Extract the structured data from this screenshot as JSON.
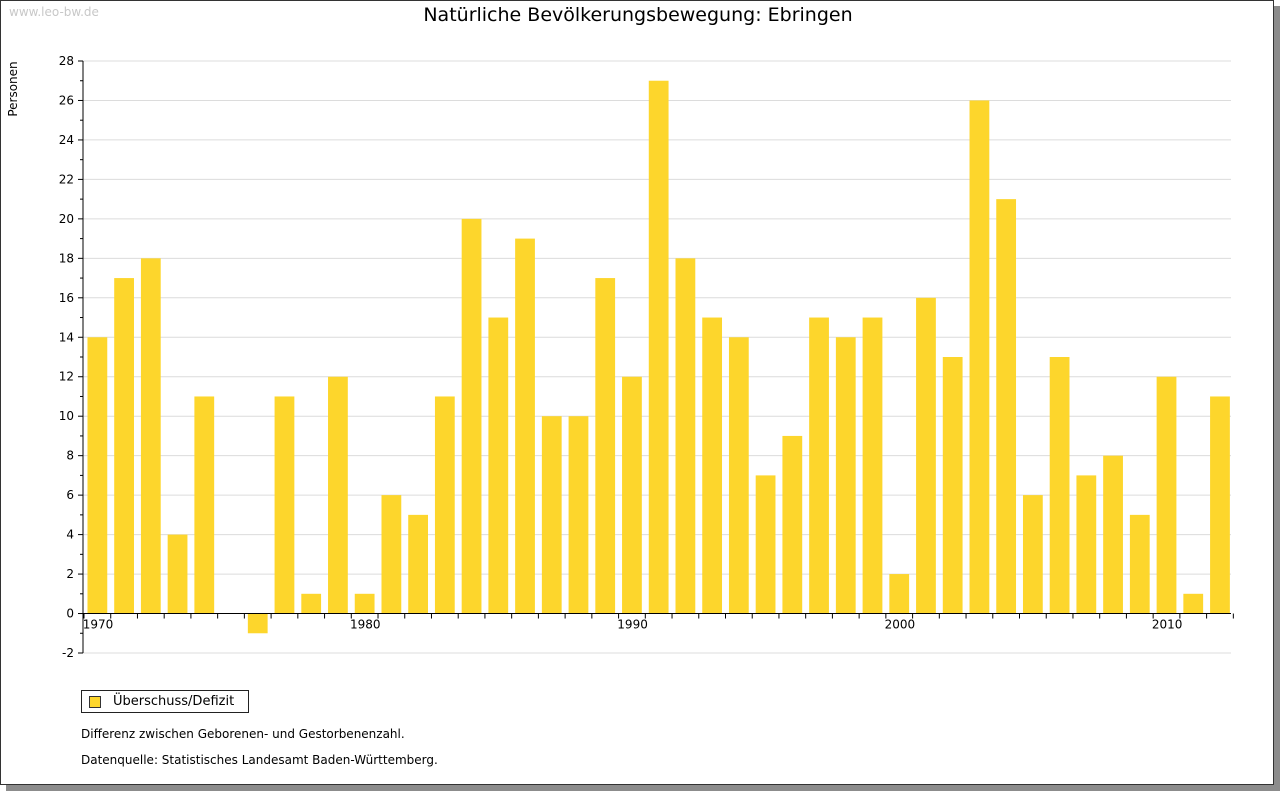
{
  "watermark": "www.leo-bw.de",
  "colors": {
    "bar": "#fdd62c",
    "grid": "#dcdcdc",
    "axis": "#000000"
  },
  "legend": {
    "label": "Überschuss/Defizit",
    "swatch_color": "#fdd62c"
  },
  "notes": {
    "line1": "Differenz zwischen Geborenen- und Gestorbenenzahl.",
    "line2": "Datenquelle: Statistisches Landesamt Baden-Württemberg."
  },
  "chart_data": {
    "type": "bar",
    "title": "Natürliche Bevölkerungsbewegung: Ebringen",
    "xlabel": "",
    "ylabel": "Personen",
    "ylim": [
      -2,
      28
    ],
    "yticks": [
      -2,
      0,
      2,
      4,
      6,
      8,
      10,
      12,
      14,
      16,
      18,
      20,
      22,
      24,
      26,
      28
    ],
    "xtick_labels": [
      "1970",
      "1980",
      "1990",
      "2000",
      "2010"
    ],
    "grid": true,
    "legend_position": "bottom-left",
    "categories": [
      1970,
      1971,
      1972,
      1973,
      1974,
      1975,
      1976,
      1977,
      1978,
      1979,
      1980,
      1981,
      1982,
      1983,
      1984,
      1985,
      1986,
      1987,
      1988,
      1989,
      1990,
      1991,
      1992,
      1993,
      1994,
      1995,
      1996,
      1997,
      1998,
      1999,
      2000,
      2001,
      2002,
      2003,
      2004,
      2005,
      2006,
      2007,
      2008,
      2009,
      2010,
      2011,
      2012
    ],
    "series": [
      {
        "name": "Überschuss/Defizit",
        "values": [
          14,
          17,
          18,
          4,
          11,
          0,
          -1,
          11,
          1,
          12,
          1,
          6,
          5,
          11,
          20,
          15,
          19,
          10,
          10,
          17,
          12,
          27,
          18,
          15,
          14,
          7,
          9,
          15,
          14,
          15,
          2,
          16,
          13,
          26,
          21,
          6,
          13,
          7,
          8,
          5,
          12,
          1,
          11
        ]
      }
    ]
  }
}
